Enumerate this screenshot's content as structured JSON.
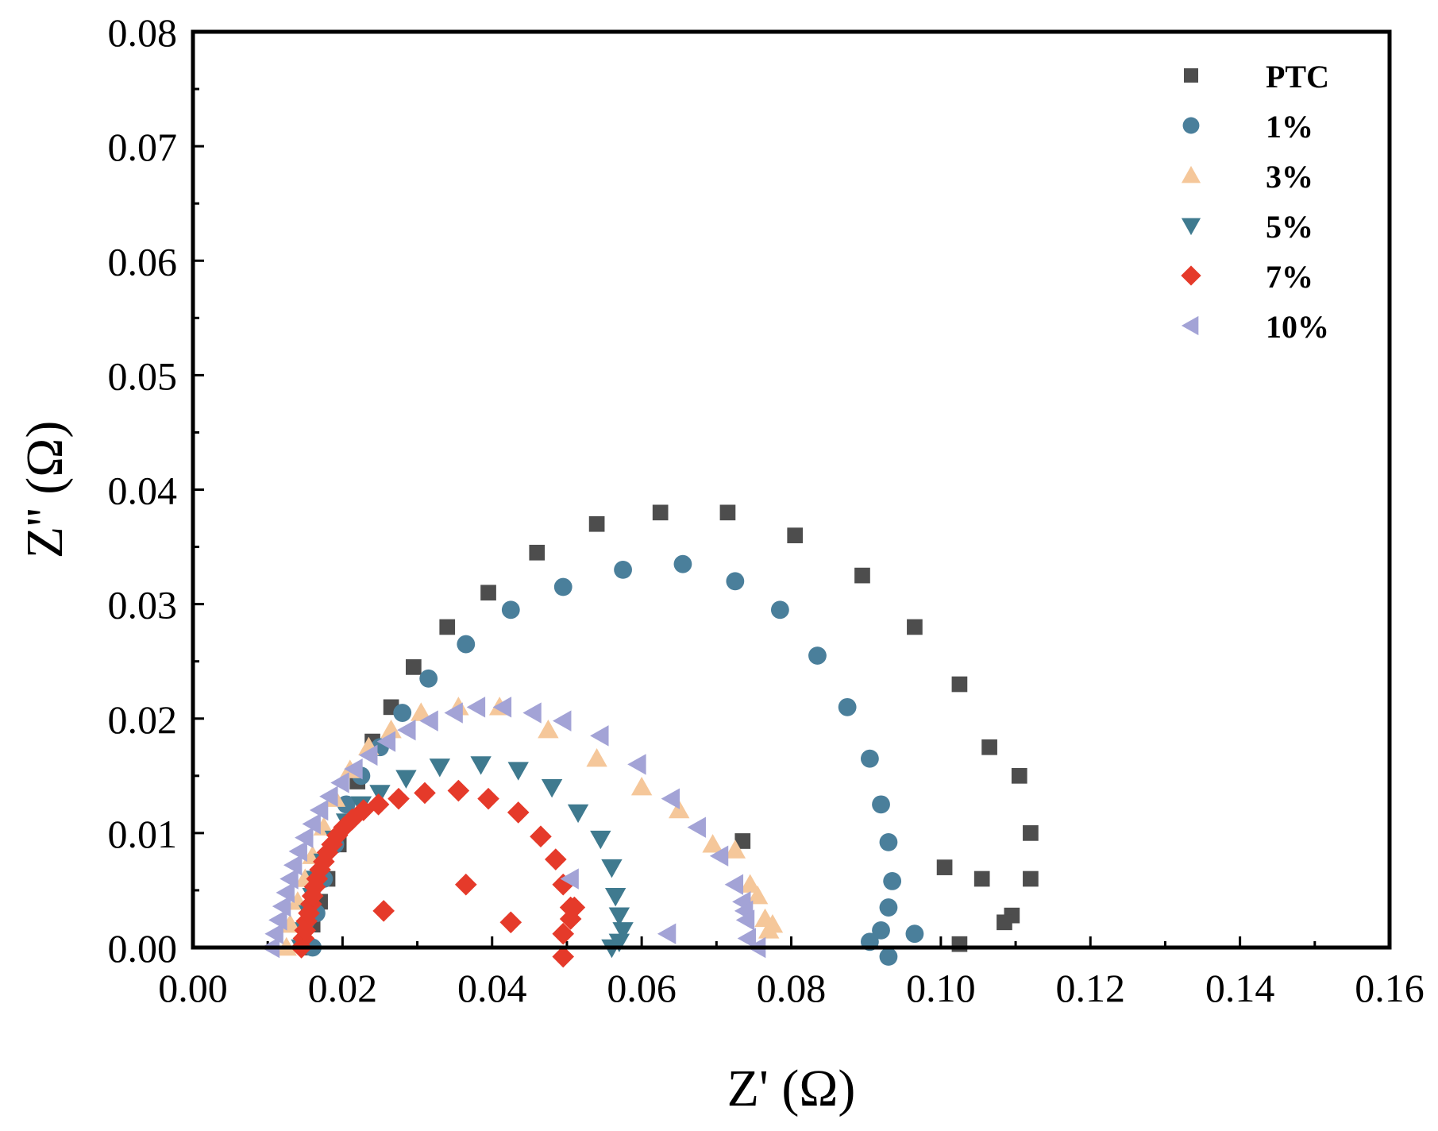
{
  "chart_data": {
    "type": "scatter",
    "title": "",
    "xlabel": "Z' (Ω)",
    "ylabel": "Z'' (Ω)",
    "xlim": [
      0,
      0.16
    ],
    "ylim": [
      0,
      0.08
    ],
    "xticks": [
      "0.00",
      "0.02",
      "0.04",
      "0.06",
      "0.08",
      "0.10",
      "0.12",
      "0.14",
      "0.16"
    ],
    "yticks": [
      "0.00",
      "0.01",
      "0.02",
      "0.03",
      "0.04",
      "0.05",
      "0.06",
      "0.07",
      "0.08"
    ],
    "grid": false,
    "legend_position": "top-right",
    "series": [
      {
        "name": "PTC",
        "marker": "square",
        "color": "#4d4d4d",
        "x": [
          0.0155,
          0.016,
          0.017,
          0.018,
          0.0195,
          0.022,
          0.024,
          0.0265,
          0.0295,
          0.034,
          0.0395,
          0.046,
          0.054,
          0.0625,
          0.0715,
          0.0805,
          0.0895,
          0.0965,
          0.1025,
          0.1065,
          0.1105,
          0.112,
          0.112,
          0.1095,
          0.1085,
          0.1055,
          0.1005,
          0.1025,
          0.0735
        ],
        "y": [
          0.0,
          0.002,
          0.004,
          0.006,
          0.009,
          0.0145,
          0.018,
          0.021,
          0.0245,
          0.028,
          0.031,
          0.0345,
          0.037,
          0.038,
          0.038,
          0.036,
          0.0325,
          0.028,
          0.023,
          0.0175,
          0.015,
          0.01,
          0.006,
          0.0028,
          0.0022,
          0.006,
          0.007,
          0.0003,
          0.0093
        ]
      },
      {
        "name": "1%",
        "marker": "circle",
        "color": "#4a7f9b",
        "x": [
          0.016,
          0.0165,
          0.0175,
          0.019,
          0.0205,
          0.0225,
          0.025,
          0.028,
          0.0315,
          0.0365,
          0.0425,
          0.0495,
          0.0575,
          0.0655,
          0.0725,
          0.0785,
          0.0835,
          0.0875,
          0.0905,
          0.092,
          0.093,
          0.0935,
          0.093,
          0.092,
          0.0905,
          0.093,
          0.0965
        ],
        "y": [
          0.0,
          0.003,
          0.006,
          0.009,
          0.0125,
          0.015,
          0.0175,
          0.0205,
          0.0235,
          0.0265,
          0.0295,
          0.0315,
          0.033,
          0.0335,
          0.032,
          0.0295,
          0.0255,
          0.021,
          0.0165,
          0.0125,
          0.0092,
          0.0058,
          0.0035,
          0.0015,
          0.0005,
          -0.0008,
          0.0012
        ]
      },
      {
        "name": "3%",
        "marker": "triangle-up",
        "color": "#f5c79a",
        "x": [
          0.0125,
          0.013,
          0.014,
          0.015,
          0.016,
          0.0175,
          0.019,
          0.021,
          0.0235,
          0.0265,
          0.0305,
          0.0355,
          0.041,
          0.0475,
          0.054,
          0.06,
          0.065,
          0.0695,
          0.0725,
          0.0745,
          0.0755,
          0.0765,
          0.077,
          0.0775
        ],
        "y": [
          0.0,
          0.002,
          0.004,
          0.006,
          0.008,
          0.0105,
          0.013,
          0.0155,
          0.0175,
          0.019,
          0.0205,
          0.021,
          0.021,
          0.019,
          0.0165,
          0.014,
          0.012,
          0.009,
          0.0085,
          0.0055,
          0.0045,
          0.0025,
          0.0015,
          0.002
        ]
      },
      {
        "name": "5%",
        "marker": "triangle-down",
        "color": "#3f7a8f",
        "x": [
          0.0145,
          0.015,
          0.0155,
          0.016,
          0.0165,
          0.0175,
          0.019,
          0.0205,
          0.0225,
          0.025,
          0.0285,
          0.033,
          0.0385,
          0.0435,
          0.048,
          0.0515,
          0.0545,
          0.056,
          0.0565,
          0.057,
          0.0575,
          0.057,
          0.056
        ],
        "y": [
          0.0,
          0.0015,
          0.003,
          0.0045,
          0.006,
          0.0075,
          0.0095,
          0.011,
          0.0125,
          0.0135,
          0.0148,
          0.0158,
          0.016,
          0.0155,
          0.014,
          0.0118,
          0.0095,
          0.007,
          0.0045,
          0.0028,
          0.0015,
          0.0005,
          0.0
        ]
      },
      {
        "name": "7%",
        "marker": "diamond",
        "color": "#e53a2a",
        "x": [
          0.0145,
          0.0148,
          0.015,
          0.0152,
          0.0155,
          0.0158,
          0.016,
          0.0163,
          0.0166,
          0.017,
          0.0175,
          0.018,
          0.0186,
          0.0193,
          0.0202,
          0.0213,
          0.0228,
          0.0248,
          0.0275,
          0.031,
          0.0355,
          0.0395,
          0.0435,
          0.0465,
          0.0485,
          0.0495,
          0.0505,
          0.051,
          0.0505,
          0.0495,
          0.0425,
          0.0365,
          0.0255,
          0.0495
        ],
        "y": [
          0.0,
          0.0008,
          0.0015,
          0.0023,
          0.003,
          0.0038,
          0.0045,
          0.0053,
          0.006,
          0.0068,
          0.0075,
          0.0083,
          0.009,
          0.0098,
          0.0105,
          0.0112,
          0.012,
          0.0125,
          0.013,
          0.0135,
          0.0137,
          0.013,
          0.0118,
          0.0097,
          0.0077,
          0.0055,
          0.0035,
          0.0035,
          0.0025,
          0.0012,
          0.0022,
          0.0055,
          0.0032,
          -0.0008
        ]
      },
      {
        "name": "10%",
        "marker": "triangle-left",
        "color": "#a3a3d6",
        "x": [
          0.0105,
          0.011,
          0.0115,
          0.012,
          0.0125,
          0.013,
          0.0135,
          0.0142,
          0.015,
          0.016,
          0.017,
          0.0183,
          0.0198,
          0.0216,
          0.0236,
          0.026,
          0.0287,
          0.0317,
          0.035,
          0.038,
          0.0415,
          0.0455,
          0.0495,
          0.0545,
          0.0595,
          0.064,
          0.0675,
          0.0705,
          0.0725,
          0.0735,
          0.0738,
          0.074,
          0.0742,
          0.0755,
          0.0635,
          0.0505
        ],
        "y": [
          0.0,
          0.0012,
          0.0024,
          0.0036,
          0.0048,
          0.006,
          0.0072,
          0.0084,
          0.0096,
          0.0108,
          0.012,
          0.0132,
          0.0144,
          0.0156,
          0.0168,
          0.018,
          0.019,
          0.0198,
          0.0205,
          0.021,
          0.021,
          0.0205,
          0.0198,
          0.0185,
          0.016,
          0.013,
          0.0105,
          0.008,
          0.0055,
          0.004,
          0.0032,
          0.0024,
          0.0008,
          0.0,
          0.0012,
          0.006
        ]
      }
    ]
  }
}
